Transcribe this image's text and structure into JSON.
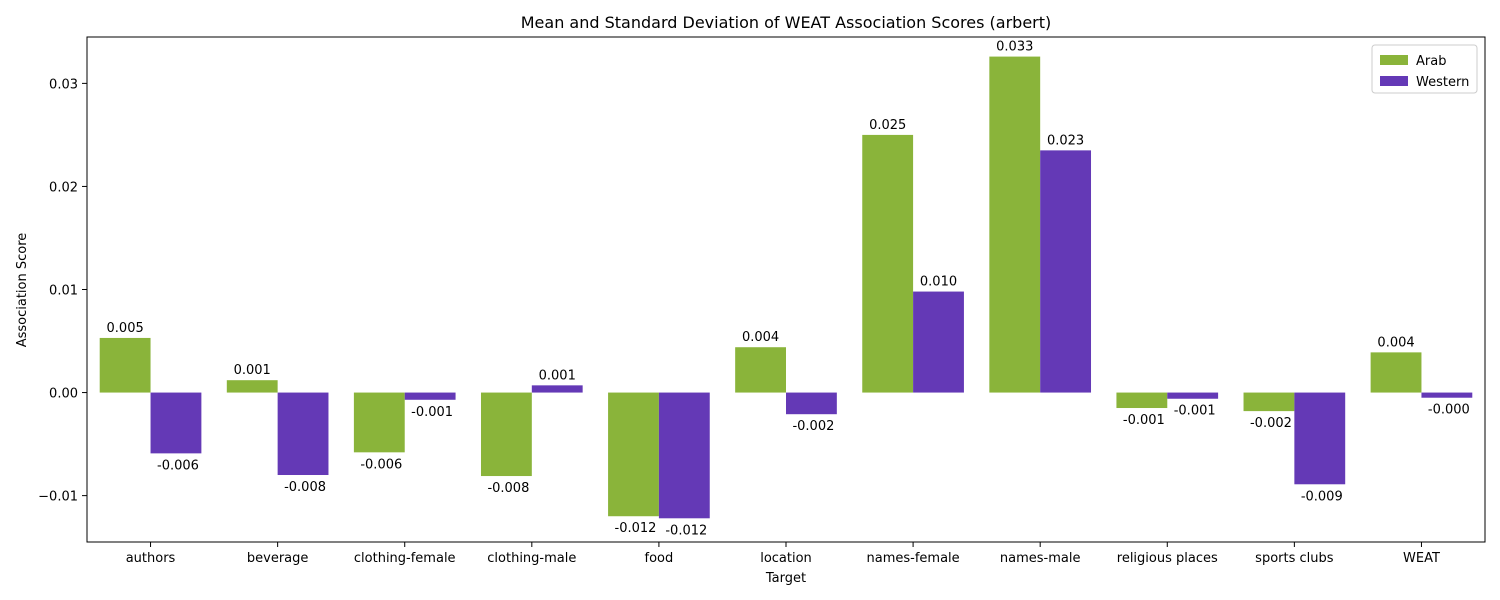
{
  "chart_data": {
    "type": "bar",
    "title": "Mean and Standard Deviation of WEAT Association Scores (arbert)",
    "xlabel": "Target",
    "ylabel": "Association Score",
    "ylim": [
      -0.0145,
      0.0345
    ],
    "yticks": [
      -0.01,
      0.0,
      0.01,
      0.02,
      0.03
    ],
    "ytick_labels": [
      "−0.01",
      "0.00",
      "0.01",
      "0.02",
      "0.03"
    ],
    "grid": false,
    "legend_position": "top-right",
    "categories": [
      "authors",
      "beverage",
      "clothing-female",
      "clothing-male",
      "food",
      "location",
      "names-female",
      "names-male",
      "religious places",
      "sports clubs",
      "WEAT"
    ],
    "series": [
      {
        "name": "Arab",
        "color": "#8ab43a",
        "values": [
          0.0053,
          0.0012,
          -0.0058,
          -0.0081,
          -0.012,
          0.0044,
          0.025,
          0.0326,
          -0.0015,
          -0.0018,
          0.0039
        ],
        "labels": [
          "0.005",
          "0.001",
          "-0.006",
          "-0.008",
          "-0.012",
          "0.004",
          "0.025",
          "0.033",
          "-0.001",
          "-0.002",
          "0.004"
        ]
      },
      {
        "name": "Western",
        "color": "#6439b6",
        "values": [
          -0.0059,
          -0.008,
          -0.0007,
          0.0007,
          -0.0122,
          -0.0021,
          0.0098,
          0.0235,
          -0.0006,
          -0.0089,
          -0.0005
        ],
        "labels": [
          "-0.006",
          "-0.008",
          "-0.001",
          "0.001",
          "-0.012",
          "-0.002",
          "0.010",
          "0.023",
          "-0.001",
          "-0.009",
          "-0.000"
        ]
      }
    ]
  }
}
